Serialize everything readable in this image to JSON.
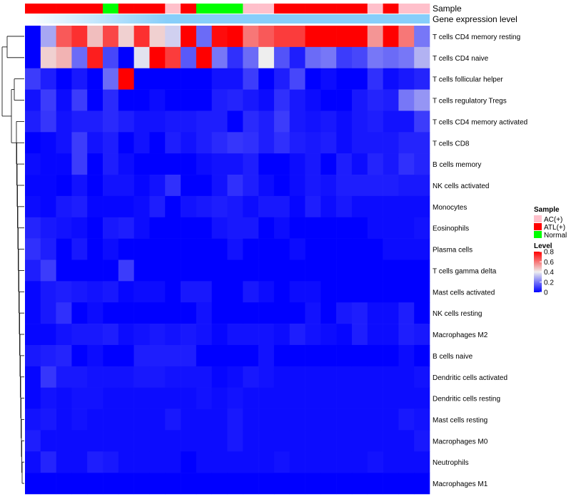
{
  "chart_data": {
    "type": "heatmap",
    "annotation_tracks": [
      {
        "name": "Sample",
        "values": [
          "ATL(+)",
          "ATL(+)",
          "ATL(+)",
          "ATL(+)",
          "ATL(+)",
          "Normal",
          "ATL(+)",
          "ATL(+)",
          "ATL(+)",
          "AC(+)",
          "ATL(+)",
          "Normal",
          "Normal",
          "Normal",
          "AC(+)",
          "AC(+)",
          "ATL(+)",
          "ATL(+)",
          "ATL(+)",
          "ATL(+)",
          "ATL(+)",
          "ATL(+)",
          "AC(+)",
          "ATL(+)",
          "AC(+)",
          "AC(+)"
        ]
      },
      {
        "name": "Gene expression level",
        "gradient": true
      }
    ],
    "rows": [
      "T cells CD4 memory resting",
      "T cells CD4 naive",
      "T cells follicular helper",
      "T cells regulatory  Tregs",
      "T cells CD4 memory activated",
      "T cells CD8",
      "B cells memory",
      "NK cells activated",
      "Monocytes",
      "Eosinophils",
      "Plasma cells",
      "T cells gamma delta",
      "Mast cells activated",
      "NK cells resting",
      "Macrophages M2",
      "B cells naive",
      "Dendritic cells activated",
      "Dendritic cells resting",
      "Mast cells resting",
      "Macrophages M0",
      "Neutrophils",
      "Macrophages M1"
    ],
    "column_blocks": [
      {
        "sample": "ATL(+)",
        "values": [
          0.0,
          0.0,
          0.1,
          0.03,
          0.05,
          0.0,
          0.02,
          0.01,
          0.02,
          0.06,
          0.08,
          0.05,
          0.01,
          0.01,
          0.01,
          0.04,
          0.01,
          0.01,
          0.03,
          0.05,
          0.02,
          0.0
        ]
      },
      {
        "sample": "ATL(+)",
        "values": [
          0.28,
          0.45,
          0.05,
          0.1,
          0.09,
          0.01,
          0.01,
          0.01,
          0.01,
          0.04,
          0.05,
          0.1,
          0.04,
          0.04,
          0.01,
          0.05,
          0.09,
          0.03,
          0.04,
          0.02,
          0.06,
          0.0
        ]
      },
      {
        "sample": "ATL(+)",
        "values": [
          0.65,
          0.5,
          0.0,
          0.02,
          0.03,
          0.03,
          0.01,
          0.0,
          0.04,
          0.03,
          0.0,
          0.0,
          0.05,
          0.08,
          0.03,
          0.06,
          0.04,
          0.02,
          0.02,
          0.02,
          0.02,
          0.0
        ]
      },
      {
        "sample": "ATL(+)",
        "values": [
          0.72,
          0.18,
          0.04,
          0.1,
          0.05,
          0.1,
          0.1,
          0.03,
          0.05,
          0.02,
          0.04,
          0.0,
          0.04,
          0.0,
          0.04,
          0.0,
          0.04,
          0.03,
          0.03,
          0.02,
          0.02,
          0.0
        ]
      },
      {
        "sample": "ATL(+)",
        "values": [
          0.48,
          0.75,
          0.0,
          0.0,
          0.05,
          0.03,
          0.0,
          0.0,
          0.01,
          0.0,
          0.0,
          0.0,
          0.03,
          0.02,
          0.04,
          0.02,
          0.03,
          0.03,
          0.02,
          0.02,
          0.05,
          0.0
        ]
      },
      {
        "sample": "Normal",
        "values": [
          0.68,
          0.12,
          0.18,
          0.07,
          0.07,
          0.05,
          0.05,
          0.03,
          0.01,
          0.04,
          0.02,
          0.0,
          0.04,
          0.0,
          0.05,
          0.0,
          0.03,
          0.02,
          0.02,
          0.02,
          0.04,
          0.0
        ]
      },
      {
        "sample": "ATL(+)",
        "values": [
          0.45,
          0.0,
          0.85,
          0.0,
          0.05,
          0.0,
          0.02,
          0.03,
          0.01,
          0.05,
          0.0,
          0.1,
          0.01,
          0.0,
          0.02,
          0.0,
          0.03,
          0.02,
          0.02,
          0.02,
          0.02,
          0.0
        ]
      },
      {
        "sample": "ATL(+)",
        "values": [
          0.72,
          0.38,
          0.0,
          0.0,
          0.03,
          0.03,
          0.0,
          0.01,
          0.02,
          0.02,
          0.0,
          0.0,
          0.02,
          0.0,
          0.03,
          0.05,
          0.04,
          0.02,
          0.02,
          0.02,
          0.02,
          0.0
        ]
      },
      {
        "sample": "ATL(+)",
        "values": [
          0.45,
          0.85,
          0.0,
          0.02,
          0.03,
          0.0,
          0.0,
          0.03,
          0.05,
          0.0,
          0.0,
          0.0,
          0.02,
          0.0,
          0.04,
          0.05,
          0.04,
          0.02,
          0.02,
          0.02,
          0.02,
          0.0
        ]
      },
      {
        "sample": "AC(+)",
        "values": [
          0.35,
          0.7,
          0.0,
          0.0,
          0.04,
          0.05,
          0.0,
          0.08,
          0.0,
          0.0,
          0.0,
          0.0,
          0.0,
          0.0,
          0.03,
          0.05,
          0.03,
          0.02,
          0.04,
          0.02,
          0.02,
          0.0
        ]
      },
      {
        "sample": "ATL(+)",
        "values": [
          0.9,
          0.15,
          0.0,
          0.0,
          0.04,
          0.03,
          0.0,
          0.0,
          0.03,
          0.0,
          0.0,
          0.0,
          0.04,
          0.0,
          0.04,
          0.05,
          0.03,
          0.02,
          0.02,
          0.02,
          0.0,
          0.0
        ]
      },
      {
        "sample": "Normal",
        "values": [
          0.18,
          0.88,
          0.0,
          0.0,
          0.05,
          0.05,
          0.02,
          0.0,
          0.04,
          0.0,
          0.0,
          0.0,
          0.04,
          0.03,
          0.03,
          0.0,
          0.03,
          0.03,
          0.02,
          0.02,
          0.02,
          0.0
        ]
      },
      {
        "sample": "Normal",
        "values": [
          0.78,
          0.2,
          0.03,
          0.05,
          0.05,
          0.07,
          0.03,
          0.03,
          0.05,
          0.03,
          0.0,
          0.0,
          0.0,
          0.0,
          0.01,
          0.0,
          0.01,
          0.02,
          0.02,
          0.02,
          0.02,
          0.0
        ]
      },
      {
        "sample": "Normal",
        "values": [
          0.88,
          0.08,
          0.03,
          0.06,
          0.0,
          0.09,
          0.03,
          0.08,
          0.04,
          0.04,
          0.03,
          0.0,
          0.0,
          0.0,
          0.03,
          0.0,
          0.02,
          0.03,
          0.04,
          0.04,
          0.02,
          0.0
        ]
      },
      {
        "sample": "AC(+)",
        "values": [
          0.6,
          0.18,
          0.1,
          0.04,
          0.07,
          0.08,
          0.05,
          0.05,
          0.02,
          0.04,
          0.0,
          0.0,
          0.04,
          0.0,
          0.03,
          0.0,
          0.04,
          0.02,
          0.02,
          0.02,
          0.02,
          0.0
        ]
      },
      {
        "sample": "AC(+)",
        "values": [
          0.65,
          0.4,
          0.0,
          0.02,
          0.05,
          0.05,
          0.0,
          0.02,
          0.04,
          0.0,
          0.0,
          0.0,
          0.02,
          0.0,
          0.03,
          0.03,
          0.03,
          0.02,
          0.02,
          0.02,
          0.02,
          0.0
        ]
      },
      {
        "sample": "ATL(+)",
        "values": [
          0.7,
          0.14,
          0.05,
          0.08,
          0.1,
          0.08,
          0.0,
          0.0,
          0.04,
          0.02,
          0.0,
          0.0,
          0.0,
          0.0,
          0.02,
          0.0,
          0.02,
          0.02,
          0.02,
          0.02,
          0.03,
          0.0
        ]
      },
      {
        "sample": "ATL(+)",
        "values": [
          0.7,
          0.05,
          0.12,
          0.04,
          0.04,
          0.05,
          0.02,
          0.02,
          0.01,
          0.0,
          0.02,
          0.0,
          0.02,
          0.0,
          0.05,
          0.0,
          0.02,
          0.02,
          0.02,
          0.02,
          0.02,
          0.0
        ]
      },
      {
        "sample": "ATL(+)",
        "values": [
          0.85,
          0.18,
          0.0,
          0.02,
          0.03,
          0.04,
          0.04,
          0.04,
          0.05,
          0.0,
          0.0,
          0.0,
          0.02,
          0.03,
          0.03,
          0.0,
          0.02,
          0.02,
          0.02,
          0.02,
          0.02,
          0.0
        ]
      },
      {
        "sample": "ATL(+)",
        "values": [
          0.85,
          0.2,
          0.02,
          0.0,
          0.04,
          0.05,
          0.0,
          0.03,
          0.02,
          0.0,
          0.0,
          0.0,
          0.0,
          0.0,
          0.02,
          0.0,
          0.02,
          0.02,
          0.02,
          0.02,
          0.02,
          0.0
        ]
      },
      {
        "sample": "ATL(+)",
        "values": [
          0.82,
          0.1,
          0.0,
          0.0,
          0.02,
          0.02,
          0.05,
          0.05,
          0.04,
          0.0,
          0.0,
          0.0,
          0.0,
          0.04,
          0.01,
          0.0,
          0.02,
          0.02,
          0.02,
          0.02,
          0.02,
          0.0
        ]
      },
      {
        "sample": "ATL(+)",
        "values": [
          0.8,
          0.12,
          0.0,
          0.04,
          0.04,
          0.04,
          0.02,
          0.05,
          0.02,
          0.0,
          0.0,
          0.0,
          0.0,
          0.05,
          0.05,
          0.0,
          0.02,
          0.02,
          0.02,
          0.02,
          0.02,
          0.0
        ]
      },
      {
        "sample": "AC(+)",
        "values": [
          0.55,
          0.2,
          0.08,
          0.06,
          0.05,
          0.04,
          0.06,
          0.05,
          0.02,
          0.02,
          0.0,
          0.0,
          0.0,
          0.02,
          0.02,
          0.0,
          0.02,
          0.02,
          0.02,
          0.02,
          0.03,
          0.0
        ]
      },
      {
        "sample": "ATL(+)",
        "values": [
          0.85,
          0.18,
          0.02,
          0.05,
          0.03,
          0.04,
          0.04,
          0.05,
          0.02,
          0.02,
          0.02,
          0.0,
          0.0,
          0.02,
          0.02,
          0.0,
          0.02,
          0.02,
          0.02,
          0.02,
          0.02,
          0.0
        ]
      },
      {
        "sample": "AC(+)",
        "values": [
          0.6,
          0.2,
          0.04,
          0.2,
          0.03,
          0.06,
          0.08,
          0.04,
          0.02,
          0.02,
          0.02,
          0.0,
          0.0,
          0.05,
          0.05,
          0.02,
          0.02,
          0.02,
          0.04,
          0.02,
          0.02,
          0.0
        ]
      },
      {
        "sample": "AC(+)",
        "values": [
          0.2,
          0.3,
          0.06,
          0.25,
          0.1,
          0.06,
          0.06,
          0.04,
          0.02,
          0.03,
          0.02,
          0.0,
          0.0,
          0.0,
          0.04,
          0.0,
          0.03,
          0.02,
          0.03,
          0.04,
          0.02,
          0.0
        ]
      }
    ],
    "color_scale": {
      "min": 0,
      "max": 0.8,
      "low": "#0000FF",
      "mid": "#EEEEEE",
      "high": "#FF0000",
      "mid_value": 0.4
    },
    "gradient_colors": [
      "#FFFFFF",
      "#87CEFA",
      "#87CEFA"
    ],
    "legends": [
      {
        "title": "Sample",
        "entries": [
          {
            "label": "AC(+)",
            "color": "#FFC0CB"
          },
          {
            "label": "ATL(+)",
            "color": "#FF0000"
          },
          {
            "label": "Normal",
            "color": "#00FF00"
          }
        ]
      },
      {
        "title": "Level",
        "ticks": [
          "0.8",
          "0.6",
          "0.4",
          "0.2",
          "0"
        ],
        "tick_values": [
          0.8,
          0.6,
          0.4,
          0.2,
          0
        ]
      }
    ],
    "sample_colors": {
      "AC(+)": "#FFC0CB",
      "ATL(+)": "#FF0000",
      "Normal": "#00FF00"
    },
    "legend_placement": "right",
    "dendrogram": "rows"
  }
}
